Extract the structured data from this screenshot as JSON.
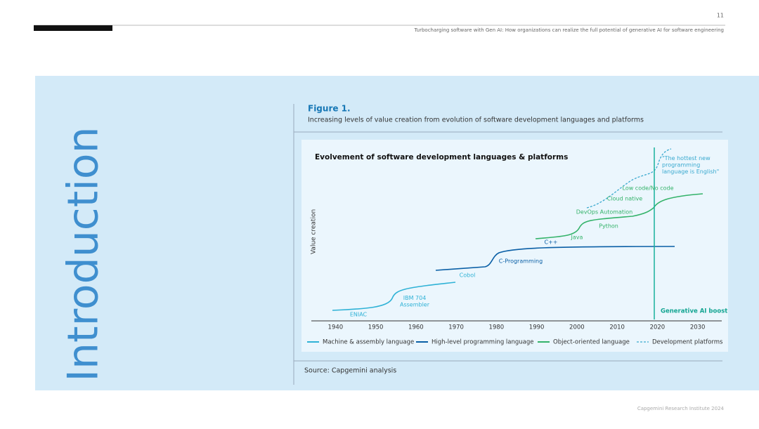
{
  "header": {
    "page_number": "11",
    "running_title": "Turbocharging software with Gen AI: How organizations can realize the full potential of generative AI for software engineering"
  },
  "sidebar_title": "Introduction",
  "figure": {
    "label": "Figure 1.",
    "caption": "Increasing levels of value creation from evolution of software development languages and platforms",
    "source": "Source: Capgemini analysis"
  },
  "chart_data": {
    "type": "line",
    "title": "Evolvement of software development languages & platforms",
    "y_label": "Value creation",
    "xlim": [
      1934,
      2036
    ],
    "xticks": [
      1940,
      1950,
      1960,
      1970,
      1980,
      1990,
      2000,
      2010,
      2020,
      2030
    ],
    "series": [
      {
        "name": "Machine & assembly language",
        "color": "#2fb2d6"
      },
      {
        "name": "High-level programming language",
        "color": "#0a5fa6"
      },
      {
        "name": "Object-oriented language",
        "color": "#34b36a"
      },
      {
        "name": "Development platforms",
        "color": "#3aa9cf"
      }
    ],
    "annotations": [
      "ENIAC",
      "IBM 704\nAssembler",
      "Cobol",
      "C-Programming",
      "C++",
      "Java",
      "Python",
      "DevOps Automation",
      "Cloud native",
      "Low code/No code",
      "\"The hottest new\nprogramming\nlanguage is English\""
    ],
    "boost_label": "Generative AI boost"
  },
  "footer": "Capgemini Research Institute 2024"
}
